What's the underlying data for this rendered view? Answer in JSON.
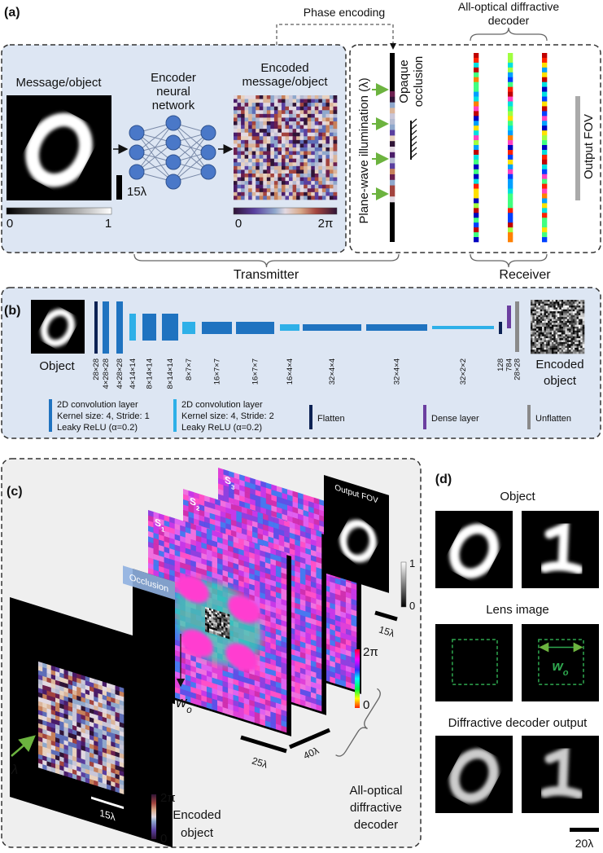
{
  "panel_a": {
    "label": "(a)",
    "phase_encoding": "Phase encoding",
    "decoder_title": [
      "All-optical diffractive",
      "decoder"
    ],
    "message": "Message/object",
    "encoder": [
      "Encoder",
      "neural",
      "network"
    ],
    "encoded": [
      "Encoded",
      "message/object"
    ],
    "scale": "15λ",
    "gray_colorbar": [
      "0",
      "1"
    ],
    "phase_colorbar": [
      "0",
      "2π"
    ],
    "illumination": "Plane-wave illumination (λ)",
    "occlusion": [
      "Opaque",
      "occlusion"
    ],
    "output_fov": "Output FOV",
    "transmitter": "Transmitter",
    "receiver": "Receiver"
  },
  "panel_b": {
    "label": "(b)",
    "object": "Object",
    "encoded": [
      "Encoded",
      "object"
    ],
    "layers": [
      "28×28",
      "4×28×28",
      "4×28×28",
      "4×14×14",
      "8×14×14",
      "8×14×14",
      "8×7×7",
      "16×7×7",
      "16×7×7",
      "16×4×4",
      "32×4×4",
      "32×4×4",
      "32×2×2",
      "128",
      "784",
      "28×28"
    ],
    "legend": [
      {
        "lines": [
          "2D convolution layer",
          "Kernel size: 4, Stride: 1",
          "Leaky ReLU (α=0.2)"
        ],
        "color": "#1f73c0"
      },
      {
        "lines": [
          "2D convolution layer",
          "Kernel size: 4, Stride: 2",
          "Leaky ReLU (α=0.2)"
        ],
        "color": "#2eb0e8"
      },
      {
        "lines": [
          "Flatten"
        ],
        "color": "#0c2254"
      },
      {
        "lines": [
          "Dense layer"
        ],
        "color": "#6b3fa0"
      },
      {
        "lines": [
          "Unflatten"
        ],
        "color": "#8a8a8a"
      }
    ]
  },
  "panel_c": {
    "label": "(c)",
    "layers": [
      {
        "main": "S",
        "sub": "1"
      },
      {
        "main": "S",
        "sub": "2"
      },
      {
        "main": "S",
        "sub": "3"
      }
    ],
    "output_fov": "Output FOV",
    "fov_colorbar": [
      "1",
      "0"
    ],
    "fov_scale": "15λ",
    "phase_colorbar": [
      "2π",
      "0"
    ],
    "occlusion": "Occlusion",
    "width": {
      "main": "w",
      "sub": "o"
    },
    "wavelength": "λ",
    "input_scale": "15λ",
    "encoded_colorbar": [
      "2π",
      "0"
    ],
    "encoded": [
      "Encoded",
      "object"
    ],
    "layer_size": "25λ",
    "spacing": "40λ",
    "decoder": [
      "All-optical",
      "diffractive",
      "decoder"
    ]
  },
  "panel_d": {
    "label": "(d)",
    "object": "Object",
    "lens": "Lens image",
    "width": {
      "main": "w",
      "sub": "o"
    },
    "decoder": "Diffractive decoder output",
    "scale": "20λ"
  }
}
